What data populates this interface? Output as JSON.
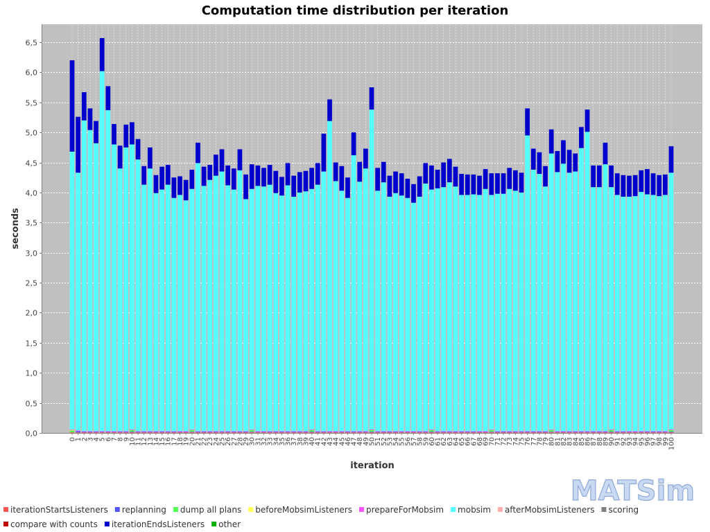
{
  "chart_data": {
    "type": "bar",
    "stacked": true,
    "title": "Computation time distribution per iteration",
    "xlabel": "iteration",
    "ylabel": "seconds",
    "ylim": [
      0,
      6.8
    ],
    "yticks": [
      "0,0",
      "0,5",
      "1,0",
      "1,5",
      "2,0",
      "2,5",
      "3,0",
      "3,5",
      "4,0",
      "4,5",
      "5,0",
      "5,5",
      "6,0",
      "6,5"
    ],
    "grid": true,
    "legend_position": "bottom",
    "categories": [
      "0",
      "1",
      "2",
      "3",
      "4",
      "5",
      "6",
      "7",
      "8",
      "9",
      "10",
      "11",
      "12",
      "13",
      "14",
      "15",
      "16",
      "17",
      "18",
      "19",
      "20",
      "21",
      "22",
      "23",
      "24",
      "25",
      "26",
      "27",
      "28",
      "29",
      "30",
      "31",
      "32",
      "33",
      "34",
      "35",
      "36",
      "37",
      "38",
      "39",
      "40",
      "41",
      "42",
      "43",
      "44",
      "45",
      "46",
      "47",
      "48",
      "49",
      "50",
      "51",
      "52",
      "53",
      "54",
      "55",
      "56",
      "57",
      "58",
      "59",
      "60",
      "61",
      "62",
      "63",
      "64",
      "65",
      "66",
      "67",
      "68",
      "69",
      "70",
      "71",
      "72",
      "73",
      "74",
      "75",
      "76",
      "77",
      "78",
      "79",
      "80",
      "81",
      "82",
      "83",
      "84",
      "85",
      "86",
      "87",
      "88",
      "89",
      "90",
      "91",
      "92",
      "93",
      "94",
      "95",
      "96",
      "97",
      "98",
      "99",
      "100"
    ],
    "series": [
      {
        "name": "iterationStartsListeners",
        "color": "#ff5555",
        "values": [
          0.01,
          0.01,
          0.01,
          0.01,
          0.01,
          0.01,
          0.01,
          0.01,
          0.01,
          0.01,
          0.01,
          0.01,
          0.01,
          0.01,
          0.01,
          0.01,
          0.01,
          0.01,
          0.01,
          0.01,
          0.01,
          0.01,
          0.01,
          0.01,
          0.01,
          0.01,
          0.01,
          0.01,
          0.01,
          0.01,
          0.01,
          0.01,
          0.01,
          0.01,
          0.01,
          0.01,
          0.01,
          0.01,
          0.01,
          0.01,
          0.01,
          0.01,
          0.01,
          0.01,
          0.01,
          0.01,
          0.01,
          0.01,
          0.01,
          0.01,
          0.01,
          0.01,
          0.01,
          0.01,
          0.01,
          0.01,
          0.01,
          0.01,
          0.01,
          0.01,
          0.01,
          0.01,
          0.01,
          0.01,
          0.01,
          0.01,
          0.01,
          0.01,
          0.01,
          0.01,
          0.01,
          0.01,
          0.01,
          0.01,
          0.01,
          0.01,
          0.01,
          0.01,
          0.01,
          0.01,
          0.01,
          0.01,
          0.01,
          0.01,
          0.01,
          0.01,
          0.01,
          0.01,
          0.01,
          0.01,
          0.01,
          0.01,
          0.01,
          0.01,
          0.01,
          0.01,
          0.01,
          0.01,
          0.01,
          0.01,
          0.01
        ]
      },
      {
        "name": "replanning",
        "color": "#5555ff",
        "values": [
          0.0,
          0.02,
          0.01,
          0.01,
          0.01,
          0.01,
          0.01,
          0.01,
          0.01,
          0.01,
          0.01,
          0.01,
          0.01,
          0.01,
          0.01,
          0.01,
          0.01,
          0.01,
          0.01,
          0.01,
          0.01,
          0.01,
          0.01,
          0.01,
          0.01,
          0.01,
          0.01,
          0.01,
          0.01,
          0.01,
          0.01,
          0.01,
          0.01,
          0.01,
          0.01,
          0.01,
          0.01,
          0.01,
          0.01,
          0.01,
          0.01,
          0.01,
          0.01,
          0.01,
          0.01,
          0.01,
          0.01,
          0.01,
          0.01,
          0.01,
          0.01,
          0.01,
          0.01,
          0.01,
          0.01,
          0.01,
          0.01,
          0.01,
          0.01,
          0.01,
          0.01,
          0.01,
          0.01,
          0.01,
          0.01,
          0.01,
          0.01,
          0.01,
          0.01,
          0.01,
          0.01,
          0.01,
          0.01,
          0.01,
          0.01,
          0.01,
          0.01,
          0.01,
          0.01,
          0.01,
          0.01,
          0.01,
          0.01,
          0.01,
          0.01,
          0.01,
          0.01,
          0.01,
          0.01,
          0.01,
          0.01,
          0.01,
          0.01,
          0.01,
          0.01,
          0.01,
          0.01,
          0.01,
          0.01,
          0.01,
          0.01
        ]
      },
      {
        "name": "dump all plans",
        "color": "#55ff55",
        "values": [
          0.03,
          0,
          0,
          0,
          0,
          0,
          0,
          0,
          0,
          0,
          0.03,
          0,
          0,
          0,
          0,
          0,
          0,
          0,
          0,
          0,
          0.03,
          0,
          0,
          0,
          0,
          0,
          0,
          0,
          0,
          0,
          0.03,
          0,
          0,
          0,
          0,
          0,
          0,
          0,
          0,
          0,
          0.03,
          0,
          0,
          0,
          0,
          0,
          0,
          0,
          0,
          0,
          0.03,
          0,
          0,
          0,
          0,
          0,
          0,
          0,
          0,
          0,
          0.03,
          0,
          0,
          0,
          0,
          0,
          0,
          0,
          0,
          0,
          0.03,
          0,
          0,
          0,
          0,
          0,
          0,
          0,
          0,
          0,
          0.03,
          0,
          0,
          0,
          0,
          0,
          0,
          0,
          0,
          0,
          0.03,
          0,
          0,
          0,
          0,
          0,
          0,
          0,
          0,
          0,
          0.03
        ]
      },
      {
        "name": "beforeMobsimListeners",
        "color": "#ffff55",
        "values": [
          0.01,
          0,
          0,
          0,
          0,
          0,
          0,
          0,
          0,
          0,
          0,
          0,
          0,
          0,
          0,
          0,
          0,
          0,
          0,
          0,
          0,
          0,
          0,
          0,
          0,
          0,
          0,
          0,
          0,
          0,
          0,
          0,
          0,
          0,
          0,
          0,
          0,
          0,
          0,
          0,
          0,
          0,
          0,
          0,
          0,
          0,
          0,
          0,
          0,
          0,
          0,
          0,
          0,
          0,
          0,
          0,
          0,
          0,
          0,
          0,
          0,
          0,
          0,
          0,
          0,
          0,
          0,
          0,
          0,
          0,
          0,
          0,
          0,
          0,
          0,
          0,
          0,
          0,
          0,
          0,
          0,
          0,
          0,
          0,
          0,
          0,
          0,
          0,
          0,
          0,
          0,
          0,
          0,
          0,
          0,
          0,
          0,
          0,
          0,
          0,
          0
        ]
      },
      {
        "name": "prepareForMobsim",
        "color": "#ff55ff",
        "values": [
          0.01,
          0.01,
          0.01,
          0.01,
          0.01,
          0.01,
          0.01,
          0.01,
          0.01,
          0.01,
          0.01,
          0.01,
          0.01,
          0.01,
          0.01,
          0.01,
          0.01,
          0.01,
          0.01,
          0.01,
          0.01,
          0.01,
          0.01,
          0.01,
          0.01,
          0.01,
          0.01,
          0.01,
          0.01,
          0.01,
          0.01,
          0.01,
          0.01,
          0.01,
          0.01,
          0.01,
          0.01,
          0.01,
          0.01,
          0.01,
          0.01,
          0.01,
          0.01,
          0.01,
          0.01,
          0.01,
          0.01,
          0.01,
          0.01,
          0.01,
          0.01,
          0.01,
          0.01,
          0.01,
          0.01,
          0.01,
          0.01,
          0.01,
          0.01,
          0.01,
          0.01,
          0.01,
          0.01,
          0.01,
          0.01,
          0.01,
          0.01,
          0.01,
          0.01,
          0.01,
          0.01,
          0.01,
          0.01,
          0.01,
          0.01,
          0.01,
          0.01,
          0.01,
          0.01,
          0.01,
          0.01,
          0.01,
          0.01,
          0.01,
          0.01,
          0.01,
          0.01,
          0.01,
          0.01,
          0.01,
          0.01,
          0.01,
          0.01,
          0.01,
          0.01,
          0.01,
          0.01,
          0.01,
          0.01,
          0.01,
          0.01
        ]
      },
      {
        "name": "mobsim",
        "color": "#55ffff",
        "values": [
          4.62,
          4.29,
          5.17,
          5.01,
          4.79,
          5.99,
          5.34,
          4.77,
          4.37,
          4.72,
          4.74,
          4.52,
          4.1,
          4.37,
          3.96,
          4.02,
          4.1,
          3.88,
          3.93,
          3.84,
          4.0,
          4.46,
          4.08,
          4.18,
          4.25,
          4.32,
          4.09,
          4.02,
          4.34,
          3.86,
          4.0,
          4.08,
          4.07,
          4.1,
          3.96,
          3.92,
          4.09,
          3.9,
          3.97,
          3.99,
          4.0,
          4.1,
          4.32,
          5.16,
          4.16,
          4.0,
          3.88,
          4.59,
          4.15,
          4.37,
          5.32,
          4.0,
          4.14,
          3.9,
          3.96,
          3.92,
          3.88,
          3.8,
          3.9,
          4.12,
          3.99,
          4.04,
          4.06,
          4.14,
          4.07,
          3.93,
          3.93,
          3.94,
          3.93,
          4.03,
          3.9,
          3.95,
          3.95,
          4.03,
          4.0,
          3.97,
          4.92,
          4.35,
          4.28,
          4.07,
          4.59,
          4.31,
          4.45,
          4.3,
          4.32,
          4.71,
          4.98,
          4.06,
          4.06,
          4.44,
          4.03,
          3.93,
          3.9,
          3.9,
          3.91,
          3.98,
          3.94,
          3.93,
          3.91,
          3.93,
          4.27
        ]
      },
      {
        "name": "afterMobsimListeners",
        "color": "#ffafaf",
        "values": [
          0,
          0,
          0,
          0,
          0,
          0,
          0,
          0,
          0,
          0,
          0,
          0,
          0,
          0,
          0,
          0,
          0,
          0,
          0,
          0,
          0,
          0,
          0,
          0,
          0,
          0,
          0,
          0,
          0,
          0,
          0,
          0,
          0,
          0,
          0,
          0,
          0,
          0,
          0,
          0,
          0,
          0,
          0,
          0,
          0,
          0,
          0,
          0,
          0,
          0,
          0,
          0,
          0,
          0,
          0,
          0,
          0,
          0,
          0,
          0,
          0,
          0,
          0,
          0,
          0,
          0,
          0,
          0,
          0,
          0,
          0,
          0,
          0,
          0,
          0,
          0,
          0,
          0,
          0,
          0,
          0,
          0,
          0,
          0,
          0,
          0,
          0,
          0,
          0,
          0,
          0,
          0,
          0,
          0,
          0,
          0,
          0,
          0,
          0,
          0,
          0
        ]
      },
      {
        "name": "scoring",
        "color": "#808080",
        "values": [
          0,
          0,
          0,
          0,
          0,
          0,
          0,
          0,
          0,
          0,
          0,
          0,
          0,
          0,
          0,
          0,
          0,
          0,
          0,
          0,
          0,
          0,
          0,
          0,
          0,
          0,
          0,
          0,
          0,
          0,
          0,
          0,
          0,
          0,
          0,
          0,
          0,
          0,
          0,
          0,
          0,
          0,
          0,
          0,
          0,
          0,
          0,
          0,
          0,
          0,
          0,
          0,
          0,
          0,
          0,
          0,
          0,
          0,
          0,
          0,
          0,
          0,
          0,
          0,
          0,
          0,
          0,
          0,
          0,
          0,
          0,
          0,
          0,
          0,
          0,
          0,
          0,
          0,
          0,
          0,
          0,
          0,
          0,
          0,
          0,
          0,
          0,
          0,
          0,
          0,
          0,
          0,
          0,
          0,
          0,
          0,
          0,
          0,
          0,
          0,
          0
        ]
      },
      {
        "name": "compare with counts",
        "color": "#c00000",
        "values": [
          0,
          0,
          0,
          0,
          0,
          0,
          0,
          0,
          0,
          0,
          0,
          0,
          0,
          0,
          0,
          0,
          0,
          0,
          0,
          0,
          0,
          0,
          0,
          0,
          0,
          0,
          0,
          0,
          0,
          0,
          0,
          0,
          0,
          0,
          0,
          0,
          0,
          0,
          0,
          0,
          0,
          0,
          0,
          0,
          0,
          0,
          0,
          0,
          0,
          0,
          0,
          0,
          0,
          0,
          0,
          0,
          0,
          0,
          0,
          0,
          0,
          0,
          0,
          0,
          0,
          0,
          0,
          0,
          0,
          0,
          0,
          0,
          0,
          0,
          0,
          0,
          0,
          0,
          0,
          0,
          0,
          0,
          0,
          0,
          0,
          0,
          0,
          0,
          0,
          0,
          0,
          0,
          0,
          0,
          0,
          0,
          0,
          0,
          0,
          0,
          0
        ]
      },
      {
        "name": "iterationEndsListeners",
        "color": "#0000cc",
        "values": [
          1.52,
          0.93,
          0.47,
          0.36,
          0.37,
          0.55,
          0.4,
          0.34,
          0.38,
          0.38,
          0.37,
          0.34,
          0.31,
          0.35,
          0.3,
          0.38,
          0.33,
          0.34,
          0.31,
          0.34,
          0.32,
          0.34,
          0.32,
          0.25,
          0.35,
          0.37,
          0.33,
          0.35,
          0.35,
          0.41,
          0.41,
          0.34,
          0.31,
          0.33,
          0.37,
          0.31,
          0.37,
          0.35,
          0.34,
          0.34,
          0.35,
          0.36,
          0.63,
          0.36,
          0.31,
          0.41,
          0.34,
          0.38,
          0.33,
          0.33,
          0.37,
          0.38,
          0.34,
          0.35,
          0.36,
          0.37,
          0.32,
          0.31,
          0.34,
          0.34,
          0.4,
          0.31,
          0.41,
          0.39,
          0.33,
          0.35,
          0.34,
          0.33,
          0.32,
          0.33,
          0.36,
          0.34,
          0.34,
          0.35,
          0.34,
          0.33,
          0.45,
          0.35,
          0.36,
          0.34,
          0.4,
          0.35,
          0.39,
          0.38,
          0.3,
          0.35,
          0.37,
          0.36,
          0.36,
          0.36,
          0.36,
          0.36,
          0.36,
          0.35,
          0.35,
          0.36,
          0.42,
          0.36,
          0.35,
          0.34,
          0.44
        ]
      },
      {
        "name": "other",
        "color": "#00b000",
        "values": [
          0,
          0,
          0,
          0,
          0,
          0,
          0,
          0,
          0,
          0,
          0,
          0,
          0,
          0,
          0,
          0,
          0,
          0,
          0,
          0,
          0,
          0,
          0,
          0,
          0,
          0,
          0,
          0,
          0,
          0,
          0,
          0,
          0,
          0,
          0,
          0,
          0,
          0,
          0,
          0,
          0,
          0,
          0,
          0,
          0,
          0,
          0,
          0,
          0,
          0,
          0,
          0,
          0,
          0,
          0,
          0,
          0,
          0,
          0,
          0,
          0,
          0,
          0,
          0,
          0,
          0,
          0,
          0,
          0,
          0,
          0,
          0,
          0,
          0,
          0,
          0,
          0,
          0,
          0,
          0,
          0,
          0,
          0,
          0,
          0,
          0,
          0,
          0,
          0,
          0,
          0,
          0,
          0,
          0,
          0,
          0,
          0,
          0,
          0,
          0,
          0
        ]
      }
    ]
  },
  "logo": {
    "text": "MATSim"
  }
}
